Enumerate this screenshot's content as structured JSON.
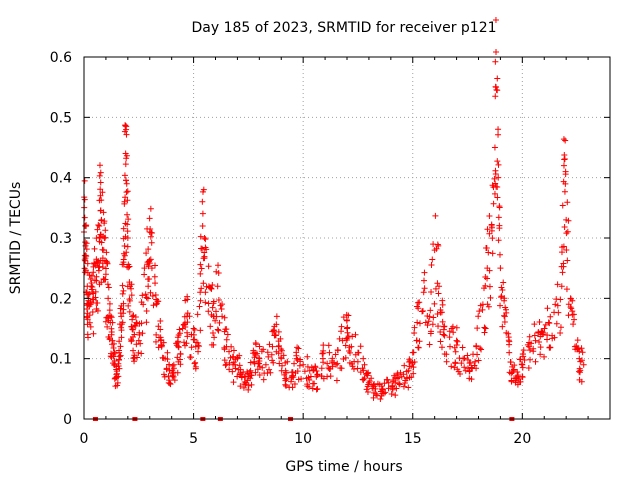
{
  "chart_data": {
    "type": "scatter",
    "title": "Day 185 of 2023, SRMTID for receiver p121",
    "xlabel": "GPS time / hours",
    "ylabel": "SRMTID / TECUs",
    "xlim": [
      0,
      24
    ],
    "ylim": [
      0,
      0.6
    ],
    "xticks": [
      0,
      5,
      10,
      15,
      20
    ],
    "xtick_labels": [
      "0",
      "5",
      "10",
      "15",
      "20"
    ],
    "yticks": [
      0,
      0.1,
      0.2,
      0.3,
      0.4,
      0.5,
      0.6
    ],
    "ytick_labels": [
      "0",
      "0.1",
      "0.2",
      "0.3",
      "0.4",
      "0.5",
      "0.6"
    ],
    "grid": true,
    "marker": "+",
    "series_color": "#ff0000",
    "series": [
      {
        "name": "SRMTID",
        "description": "dense per-satellite scatter; representative envelope points listed",
        "points": [
          [
            0.0,
            0.31
          ],
          [
            0.05,
            0.32
          ],
          [
            0.1,
            0.27
          ],
          [
            0.15,
            0.22
          ],
          [
            0.2,
            0.2
          ],
          [
            0.3,
            0.19
          ],
          [
            0.4,
            0.21
          ],
          [
            0.5,
            0.23
          ],
          [
            0.6,
            0.26
          ],
          [
            0.7,
            0.3
          ],
          [
            0.75,
            0.37
          ],
          [
            0.8,
            0.33
          ],
          [
            0.9,
            0.28
          ],
          [
            1.0,
            0.24
          ],
          [
            1.1,
            0.2
          ],
          [
            1.2,
            0.16
          ],
          [
            1.3,
            0.13
          ],
          [
            1.4,
            0.09
          ],
          [
            1.5,
            0.07
          ],
          [
            1.6,
            0.11
          ],
          [
            1.7,
            0.17
          ],
          [
            1.8,
            0.26
          ],
          [
            1.85,
            0.36
          ],
          [
            1.9,
            0.44
          ],
          [
            1.95,
            0.39
          ],
          [
            2.0,
            0.3
          ],
          [
            2.1,
            0.22
          ],
          [
            2.2,
            0.17
          ],
          [
            2.3,
            0.14
          ],
          [
            2.5,
            0.13
          ],
          [
            2.7,
            0.19
          ],
          [
            2.9,
            0.26
          ],
          [
            3.0,
            0.31
          ],
          [
            3.1,
            0.25
          ],
          [
            3.3,
            0.19
          ],
          [
            3.5,
            0.13
          ],
          [
            3.7,
            0.1
          ],
          [
            3.9,
            0.08
          ],
          [
            4.1,
            0.09
          ],
          [
            4.3,
            0.12
          ],
          [
            4.5,
            0.15
          ],
          [
            4.7,
            0.17
          ],
          [
            4.9,
            0.14
          ],
          [
            5.1,
            0.12
          ],
          [
            5.3,
            0.21
          ],
          [
            5.4,
            0.36
          ],
          [
            5.5,
            0.3
          ],
          [
            5.7,
            0.22
          ],
          [
            5.9,
            0.17
          ],
          [
            6.1,
            0.22
          ],
          [
            6.3,
            0.17
          ],
          [
            6.5,
            0.12
          ],
          [
            6.8,
            0.09
          ],
          [
            7.0,
            0.1
          ],
          [
            7.2,
            0.07
          ],
          [
            7.4,
            0.06
          ],
          [
            7.6,
            0.08
          ],
          [
            7.8,
            0.11
          ],
          [
            8.0,
            0.1
          ],
          [
            8.3,
            0.09
          ],
          [
            8.6,
            0.12
          ],
          [
            8.8,
            0.17
          ],
          [
            9.0,
            0.1
          ],
          [
            9.2,
            0.08
          ],
          [
            9.5,
            0.07
          ],
          [
            9.7,
            0.1
          ],
          [
            10.0,
            0.09
          ],
          [
            10.3,
            0.08
          ],
          [
            10.6,
            0.07
          ],
          [
            10.9,
            0.1
          ],
          [
            11.2,
            0.11
          ],
          [
            11.5,
            0.09
          ],
          [
            11.8,
            0.13
          ],
          [
            12.0,
            0.15
          ],
          [
            12.2,
            0.12
          ],
          [
            12.5,
            0.11
          ],
          [
            12.8,
            0.09
          ],
          [
            13.0,
            0.06
          ],
          [
            13.3,
            0.05
          ],
          [
            13.6,
            0.05
          ],
          [
            13.9,
            0.06
          ],
          [
            14.2,
            0.06
          ],
          [
            14.5,
            0.07
          ],
          [
            14.8,
            0.08
          ],
          [
            15.0,
            0.11
          ],
          [
            15.2,
            0.16
          ],
          [
            15.5,
            0.21
          ],
          [
            15.8,
            0.18
          ],
          [
            16.0,
            0.28
          ],
          [
            16.2,
            0.22
          ],
          [
            16.4,
            0.14
          ],
          [
            16.7,
            0.12
          ],
          [
            17.0,
            0.13
          ],
          [
            17.3,
            0.1
          ],
          [
            17.6,
            0.08
          ],
          [
            17.9,
            0.12
          ],
          [
            18.2,
            0.19
          ],
          [
            18.4,
            0.25
          ],
          [
            18.6,
            0.32
          ],
          [
            18.75,
            0.45
          ],
          [
            18.8,
            0.55
          ],
          [
            18.9,
            0.4
          ],
          [
            19.0,
            0.25
          ],
          [
            19.2,
            0.17
          ],
          [
            19.4,
            0.11
          ],
          [
            19.6,
            0.08
          ],
          [
            19.8,
            0.07
          ],
          [
            20.0,
            0.09
          ],
          [
            20.3,
            0.12
          ],
          [
            20.6,
            0.13
          ],
          [
            20.9,
            0.14
          ],
          [
            21.2,
            0.16
          ],
          [
            21.5,
            0.19
          ],
          [
            21.8,
            0.22
          ],
          [
            21.9,
            0.42
          ],
          [
            22.0,
            0.33
          ],
          [
            22.2,
            0.2
          ],
          [
            22.4,
            0.12
          ],
          [
            22.6,
            0.1
          ],
          [
            22.8,
            0.09
          ]
        ]
      }
    ],
    "zero_markers_x": [
      0.5,
      2.3,
      5.4,
      6.2,
      9.4,
      19.5
    ]
  }
}
